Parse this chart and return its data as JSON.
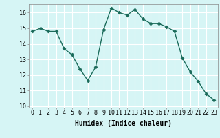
{
  "x": [
    0,
    1,
    2,
    3,
    4,
    5,
    6,
    7,
    8,
    9,
    10,
    11,
    12,
    13,
    14,
    15,
    16,
    17,
    18,
    19,
    20,
    21,
    22,
    23
  ],
  "y": [
    14.8,
    15.0,
    14.8,
    14.8,
    13.7,
    13.3,
    12.4,
    11.65,
    12.5,
    14.9,
    16.3,
    16.0,
    15.85,
    16.2,
    15.6,
    15.3,
    15.3,
    15.1,
    14.8,
    13.1,
    12.2,
    11.6,
    10.8,
    10.4
  ],
  "xlabel": "Humidex (Indice chaleur)",
  "line_color": "#1a6b5a",
  "marker": "D",
  "marker_size": 2.5,
  "bg_color": "#d6f5f5",
  "grid_color": "#ffffff",
  "ylim": [
    9.9,
    16.55
  ],
  "xlim": [
    -0.5,
    23.5
  ],
  "yticks": [
    10,
    11,
    12,
    13,
    14,
    15,
    16
  ],
  "xticks": [
    0,
    1,
    2,
    3,
    4,
    5,
    6,
    7,
    8,
    9,
    10,
    11,
    12,
    13,
    14,
    15,
    16,
    17,
    18,
    19,
    20,
    21,
    22,
    23
  ],
  "xlabel_fontsize": 7,
  "tick_fontsize": 6,
  "linewidth": 1.0
}
